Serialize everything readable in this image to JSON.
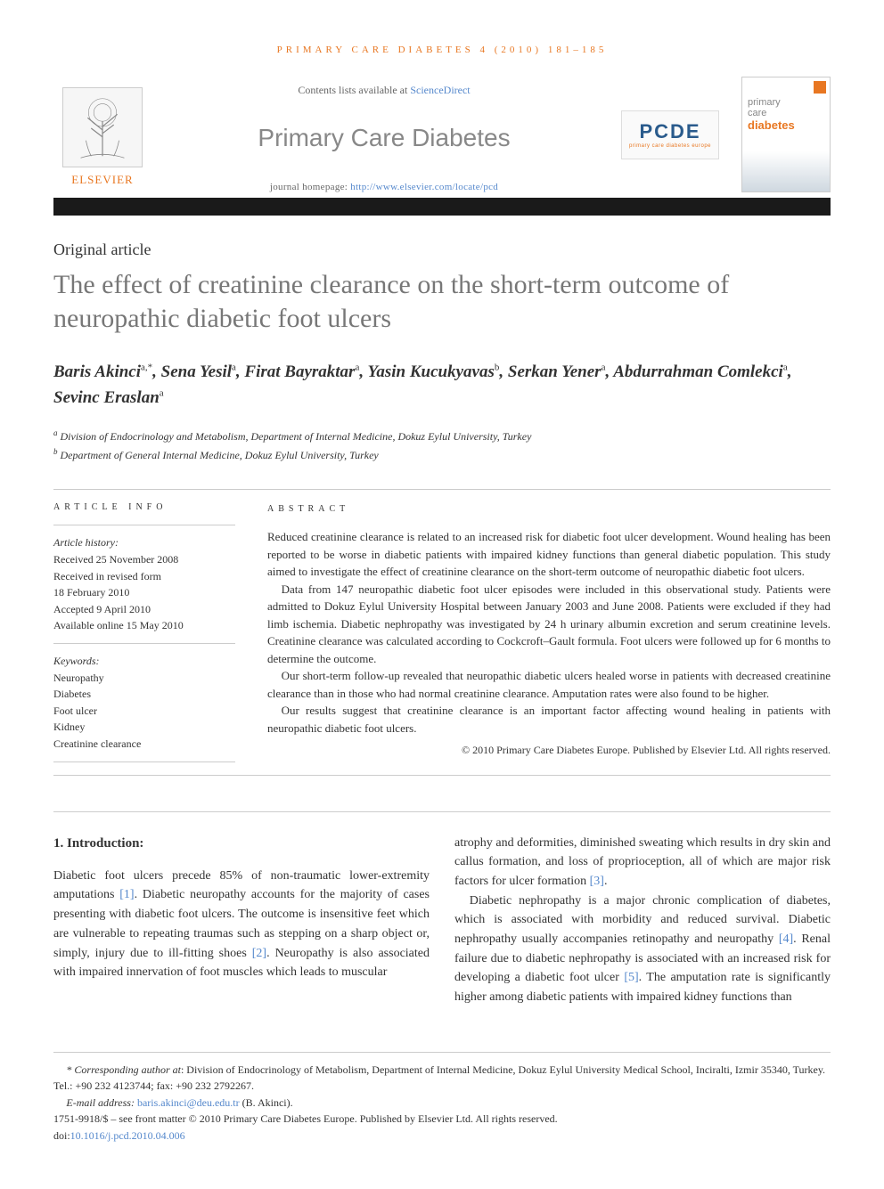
{
  "running_header": "primary care diabetes 4 (2010) 181–185",
  "masthead": {
    "contents_prefix": "Contents lists available at ",
    "contents_link": "ScienceDirect",
    "journal_name": "Primary Care Diabetes",
    "homepage_prefix": "journal homepage: ",
    "homepage_url": "http://www.elsevier.com/locate/pcd",
    "elsevier": "ELSEVIER",
    "pcde": "PCDE",
    "pcde_sub": "primary care diabetes europe",
    "cover_p": "primary",
    "cover_c": "care",
    "cover_d": "diabetes"
  },
  "article_type": "Original article",
  "title": "The effect of creatinine clearance on the short-term outcome of neuropathic diabetic foot ulcers",
  "authors_html": "Baris Akinci<sup>a,*</sup>, Sena Yesil<sup>a</sup>, Firat Bayraktar<sup>a</sup>, Yasin Kucukyavas<sup>b</sup>, Serkan Yener<sup>a</sup>, Abdurrahman Comlekci<sup>a</sup>, Sevinc Eraslan<sup>a</sup>",
  "affiliations": {
    "a": "Division of Endocrinology and Metabolism, Department of Internal Medicine, Dokuz Eylul University, Turkey",
    "b": "Department of General Internal Medicine, Dokuz Eylul University, Turkey"
  },
  "info": {
    "heading": "article info",
    "history_label": "Article history:",
    "history_lines": [
      "Received 25 November 2008",
      "Received in revised form",
      "18 February 2010",
      "Accepted 9 April 2010",
      "Available online 15 May 2010"
    ],
    "keywords_label": "Keywords:",
    "keywords": [
      "Neuropathy",
      "Diabetes",
      "Foot ulcer",
      "Kidney",
      "Creatinine clearance"
    ]
  },
  "abstract": {
    "heading": "abstract",
    "p1": "Reduced creatinine clearance is related to an increased risk for diabetic foot ulcer development. Wound healing has been reported to be worse in diabetic patients with impaired kidney functions than general diabetic population. This study aimed to investigate the effect of creatinine clearance on the short-term outcome of neuropathic diabetic foot ulcers.",
    "p2": "Data from 147 neuropathic diabetic foot ulcer episodes were included in this observational study. Patients were admitted to Dokuz Eylul University Hospital between January 2003 and June 2008. Patients were excluded if they had limb ischemia. Diabetic nephropathy was investigated by 24 h urinary albumin excretion and serum creatinine levels. Creatinine clearance was calculated according to Cockcroft–Gault formula. Foot ulcers were followed up for 6 months to determine the outcome.",
    "p3": "Our short-term follow-up revealed that neuropathic diabetic ulcers healed worse in patients with decreased creatinine clearance than in those who had normal creatinine clearance. Amputation rates were also found to be higher.",
    "p4": "Our results suggest that creatinine clearance is an important factor affecting wound healing in patients with neuropathic diabetic foot ulcers.",
    "copyright": "© 2010 Primary Care Diabetes Europe. Published by Elsevier Ltd. All rights reserved."
  },
  "section1": {
    "heading": "1.        Introduction:",
    "col1_p1_a": "Diabetic foot ulcers precede 85% of non-traumatic lower-extremity amputations ",
    "col1_p1_b": ". Diabetic neuropathy accounts for the majority of cases presenting with diabetic foot ulcers. The outcome is insensitive feet which are vulnerable to repeating traumas such as stepping on a sharp object or, simply, injury due to ill-fitting shoes ",
    "col1_p1_c": ". Neuropathy is also associated with impaired innervation of foot muscles which leads to muscular",
    "col2_p1_a": "atrophy and deformities, diminished sweating which results in dry skin and callus formation, and loss of proprioception, all of which are major risk factors for ulcer formation ",
    "col2_p1_b": ".",
    "col2_p2_a": "Diabetic nephropathy is a major chronic complication of diabetes, which is associated with morbidity and reduced survival. Diabetic nephropathy usually accompanies retinopathy and neuropathy ",
    "col2_p2_b": ". Renal failure due to diabetic nephropathy is associated with an increased risk for developing a diabetic foot ulcer ",
    "col2_p2_c": ". The amputation rate is significantly higher among diabetic patients with impaired kidney functions than",
    "refs": {
      "r1": "[1]",
      "r2": "[2]",
      "r3": "[3]",
      "r4": "[4]",
      "r5": "[5]"
    }
  },
  "footer": {
    "corr_label": "* Corresponding author at",
    "corr_text": ": Division of Endocrinology of Metabolism, Department of Internal Medicine, Dokuz Eylul University Medical School, Inciralti, Izmir 35340, Turkey. Tel.: +90 232 4123744; fax: +90 232 2792267.",
    "email_label": "E-mail address: ",
    "email": "baris.akinci@deu.edu.tr",
    "email_suffix": " (B. Akinci).",
    "issn_line": "1751-9918/$ – see front matter © 2010 Primary Care Diabetes Europe. Published by Elsevier Ltd. All rights reserved.",
    "doi_prefix": "doi:",
    "doi": "10.1016/j.pcd.2010.04.006"
  },
  "colors": {
    "accent_orange": "#e87722",
    "link_blue": "#5588cc",
    "title_grey": "#777777",
    "journal_grey": "#888888",
    "text": "#333333",
    "rule": "#cccccc",
    "bar": "#1a1a1a"
  }
}
